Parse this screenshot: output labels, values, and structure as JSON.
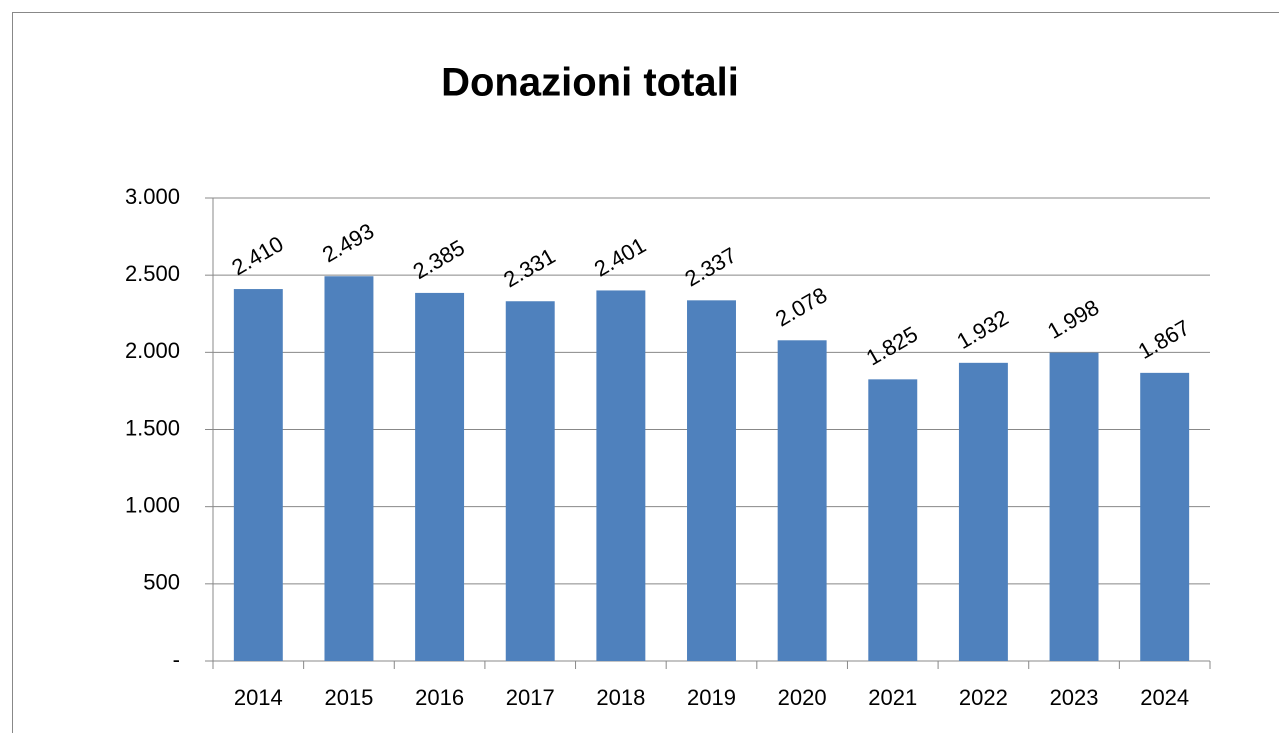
{
  "chart_data": {
    "type": "bar",
    "title": "Donazioni totali",
    "categories": [
      "2014",
      "2015",
      "2016",
      "2017",
      "2018",
      "2019",
      "2020",
      "2021",
      "2022",
      "2023",
      "2024"
    ],
    "values": [
      2410,
      2493,
      2385,
      2331,
      2401,
      2337,
      2078,
      1825,
      1932,
      1998,
      1867
    ],
    "value_labels": [
      "2.410",
      "2.493",
      "2.385",
      "2.331",
      "2.401",
      "2.337",
      "2.078",
      "1.825",
      "1.932",
      "1.998",
      "1.867"
    ],
    "color": "#4f81bd",
    "ylim": [
      0,
      3000
    ],
    "yticks": [
      {
        "value": 0,
        "label": "-"
      },
      500,
      {
        "value": 1000,
        "label": "1.000"
      },
      {
        "value": 1500,
        "label": "1.500"
      },
      {
        "value": 2000,
        "label": "2.000"
      },
      {
        "value": 2500,
        "label": "2.500"
      },
      {
        "value": 3000,
        "label": "3.000"
      }
    ],
    "grid": true
  }
}
